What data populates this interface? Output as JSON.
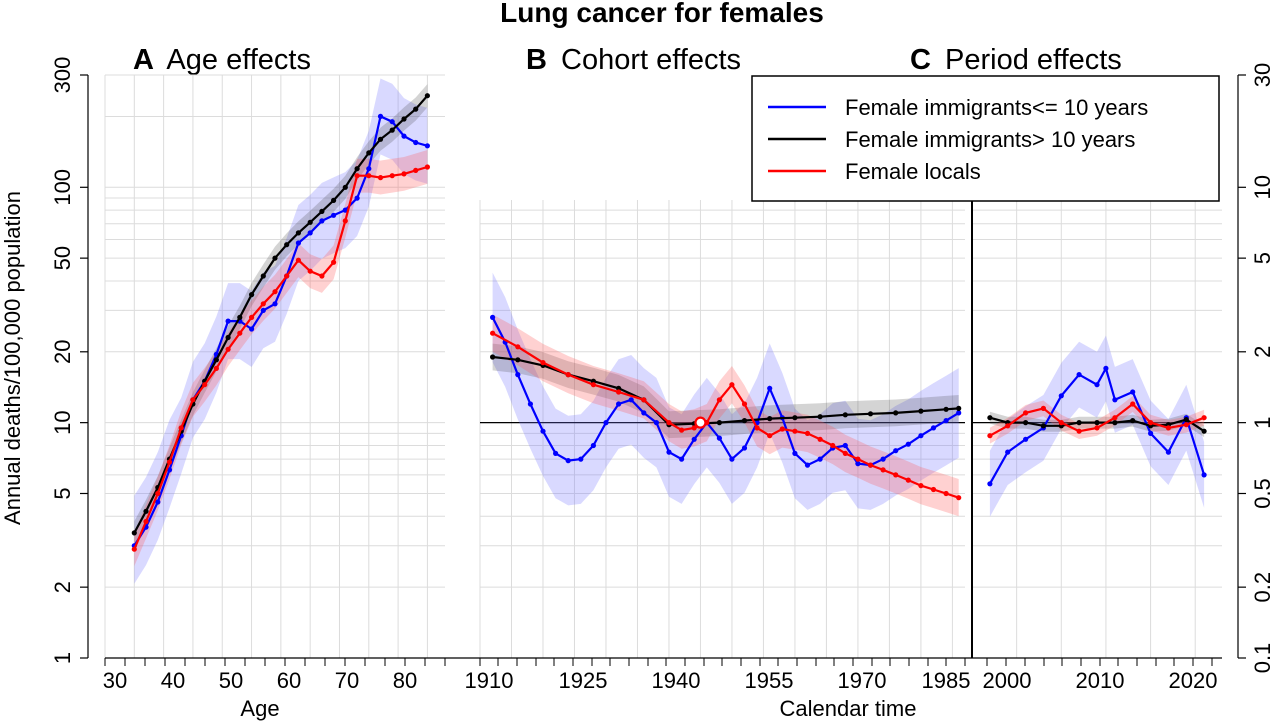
{
  "title": "Lung cancer for females",
  "ylabel_left": "Annual deaths/100,000 population",
  "legend": [
    {
      "label": "Female immigrants<= 10 years",
      "color": "#0000ff"
    },
    {
      "label": "Female immigrants> 10 years",
      "color": "#000000"
    },
    {
      "label": "Female locals",
      "color": "#ff0000"
    }
  ],
  "colors": {
    "immigrants_short": "#0000ff",
    "immigrants_long": "#000000",
    "locals": "#ff0000"
  },
  "chart_data": [
    {
      "type": "line",
      "letter": "A",
      "title": "Age effects",
      "xlabel": "Age",
      "x_ticks": [
        "30",
        "40",
        "50",
        "60",
        "70",
        "80"
      ],
      "y_ticks": [
        "1",
        "2",
        "5",
        "10",
        "20",
        "50",
        "100",
        "300"
      ],
      "y_scale": "log",
      "ylim": [
        1,
        300
      ],
      "xlim": [
        30,
        85
      ],
      "series": [
        {
          "name": "Female immigrants<= 10 years",
          "x": [
            35,
            37,
            39,
            41,
            43,
            45,
            47,
            49,
            51,
            53,
            55,
            57,
            59,
            61,
            63,
            65,
            67,
            69,
            71,
            73,
            75,
            77,
            79,
            81,
            83,
            85
          ],
          "y": [
            3.0,
            3.6,
            4.6,
            6.3,
            8.8,
            12.5,
            15.0,
            19.5,
            27,
            27,
            25,
            30,
            32,
            42,
            58,
            64,
            72,
            76,
            80,
            90,
            120,
            200,
            190,
            165,
            155,
            150
          ]
        },
        {
          "name": "Female immigrants> 10 years",
          "x": [
            35,
            37,
            39,
            41,
            43,
            45,
            47,
            49,
            51,
            53,
            55,
            57,
            59,
            61,
            63,
            65,
            67,
            69,
            71,
            73,
            75,
            77,
            79,
            81,
            83,
            85
          ],
          "y": [
            3.4,
            4.2,
            5.3,
            7.0,
            9.2,
            12.0,
            15.0,
            18.5,
            23,
            28,
            35,
            42,
            50,
            57,
            64,
            71,
            79,
            88,
            100,
            120,
            140,
            160,
            175,
            195,
            215,
            245
          ]
        },
        {
          "name": "Female locals",
          "x": [
            35,
            37,
            39,
            41,
            43,
            45,
            47,
            49,
            51,
            53,
            55,
            57,
            59,
            61,
            63,
            65,
            67,
            69,
            71,
            73,
            75,
            77,
            79,
            81,
            83,
            85
          ],
          "y": [
            2.9,
            3.8,
            5.0,
            6.8,
            9.5,
            12.5,
            14.5,
            17.0,
            20.5,
            24,
            28,
            32,
            36,
            42,
            49,
            44,
            42,
            48,
            72,
            112,
            112,
            110,
            112,
            114,
            118,
            122
          ]
        }
      ]
    },
    {
      "type": "line",
      "letter": "B",
      "title": "Cohort effects",
      "xlabel": "Calendar time",
      "x_ticks": [
        "1910",
        "1925",
        "1940",
        "1955",
        "1970",
        "1985"
      ],
      "y_scale": "log",
      "ylim": [
        1,
        300
      ],
      "xlim": [
        1910,
        1985
      ],
      "reference_point": {
        "x": 1945,
        "y": 10
      },
      "series": [
        {
          "name": "Female immigrants<= 10 years",
          "x": [
            1912,
            1914,
            1916,
            1918,
            1920,
            1922,
            1924,
            1926,
            1928,
            1930,
            1932,
            1934,
            1936,
            1938,
            1940,
            1942,
            1944,
            1946,
            1948,
            1950,
            1952,
            1954,
            1956,
            1958,
            1960,
            1962,
            1964,
            1966,
            1968,
            1970,
            1972,
            1974,
            1976,
            1978,
            1980,
            1982,
            1984,
            1986
          ],
          "y": [
            28,
            22,
            16,
            12,
            9.2,
            7.4,
            6.9,
            7.0,
            8.0,
            10.0,
            12.0,
            12.5,
            11.0,
            10.0,
            7.5,
            7.0,
            8.5,
            10.0,
            8.6,
            7.0,
            7.8,
            10.0,
            14.0,
            10.5,
            7.4,
            6.6,
            7.0,
            7.8,
            8.0,
            6.7,
            6.6,
            7.0,
            7.6,
            8.1,
            8.8,
            9.5,
            10.2,
            11.0
          ]
        },
        {
          "name": "Female immigrants> 10 years",
          "x": [
            1912,
            1916,
            1920,
            1924,
            1928,
            1932,
            1936,
            1940,
            1944,
            1948,
            1952,
            1956,
            1960,
            1964,
            1968,
            1972,
            1976,
            1980,
            1984,
            1986
          ],
          "y": [
            19,
            18.5,
            17.5,
            16,
            15,
            14,
            12.5,
            9.8,
            9.9,
            10.0,
            10.2,
            10.4,
            10.5,
            10.6,
            10.8,
            10.9,
            11.0,
            11.2,
            11.4,
            11.5
          ]
        },
        {
          "name": "Female locals",
          "x": [
            1912,
            1916,
            1920,
            1924,
            1928,
            1932,
            1936,
            1940,
            1942,
            1944,
            1946,
            1948,
            1950,
            1952,
            1954,
            1956,
            1958,
            1960,
            1962,
            1964,
            1966,
            1968,
            1970,
            1972,
            1974,
            1976,
            1978,
            1980,
            1982,
            1984,
            1986
          ],
          "y": [
            24,
            21,
            18,
            16,
            14.5,
            13.5,
            12.5,
            10,
            9.3,
            9.5,
            10,
            12.5,
            14.5,
            12,
            9.5,
            8.8,
            9.4,
            9.2,
            9.0,
            8.5,
            8.0,
            7.4,
            7.0,
            6.6,
            6.3,
            6.0,
            5.7,
            5.4,
            5.2,
            5.0,
            4.8
          ]
        }
      ]
    },
    {
      "type": "line",
      "letter": "C",
      "title": "Period effects",
      "x_ticks": [
        "2000",
        "2010",
        "2020"
      ],
      "y_ticks_right": [
        "0.1",
        "0.2",
        "0.5",
        "1",
        "2",
        "5",
        "10",
        "30"
      ],
      "y_scale": "log",
      "ylim": [
        0.1,
        30
      ],
      "xlim": [
        1995,
        2022
      ],
      "series": [
        {
          "name": "Female immigrants<= 10 years",
          "x": [
            1997,
            1999,
            2001,
            2003,
            2005,
            2007,
            2009,
            2010,
            2011,
            2013,
            2015,
            2017,
            2019,
            2021
          ],
          "y": [
            0.55,
            0.75,
            0.85,
            0.95,
            1.3,
            1.6,
            1.45,
            1.7,
            1.25,
            1.35,
            0.9,
            0.75,
            1.05,
            0.6
          ]
        },
        {
          "name": "Female immigrants> 10 years",
          "x": [
            1997,
            1999,
            2001,
            2003,
            2005,
            2007,
            2009,
            2011,
            2013,
            2015,
            2017,
            2019,
            2021
          ],
          "y": [
            1.05,
            1.0,
            1.0,
            0.97,
            0.97,
            1.0,
            1.0,
            1.0,
            1.02,
            0.97,
            0.98,
            1.03,
            0.92
          ]
        },
        {
          "name": "Female locals",
          "x": [
            1997,
            1999,
            2001,
            2003,
            2005,
            2007,
            2009,
            2011,
            2013,
            2015,
            2017,
            2019,
            2021
          ],
          "y": [
            0.88,
            0.97,
            1.1,
            1.15,
            1.0,
            0.92,
            0.95,
            1.05,
            1.2,
            1.0,
            0.95,
            0.98,
            1.05
          ]
        }
      ]
    }
  ]
}
